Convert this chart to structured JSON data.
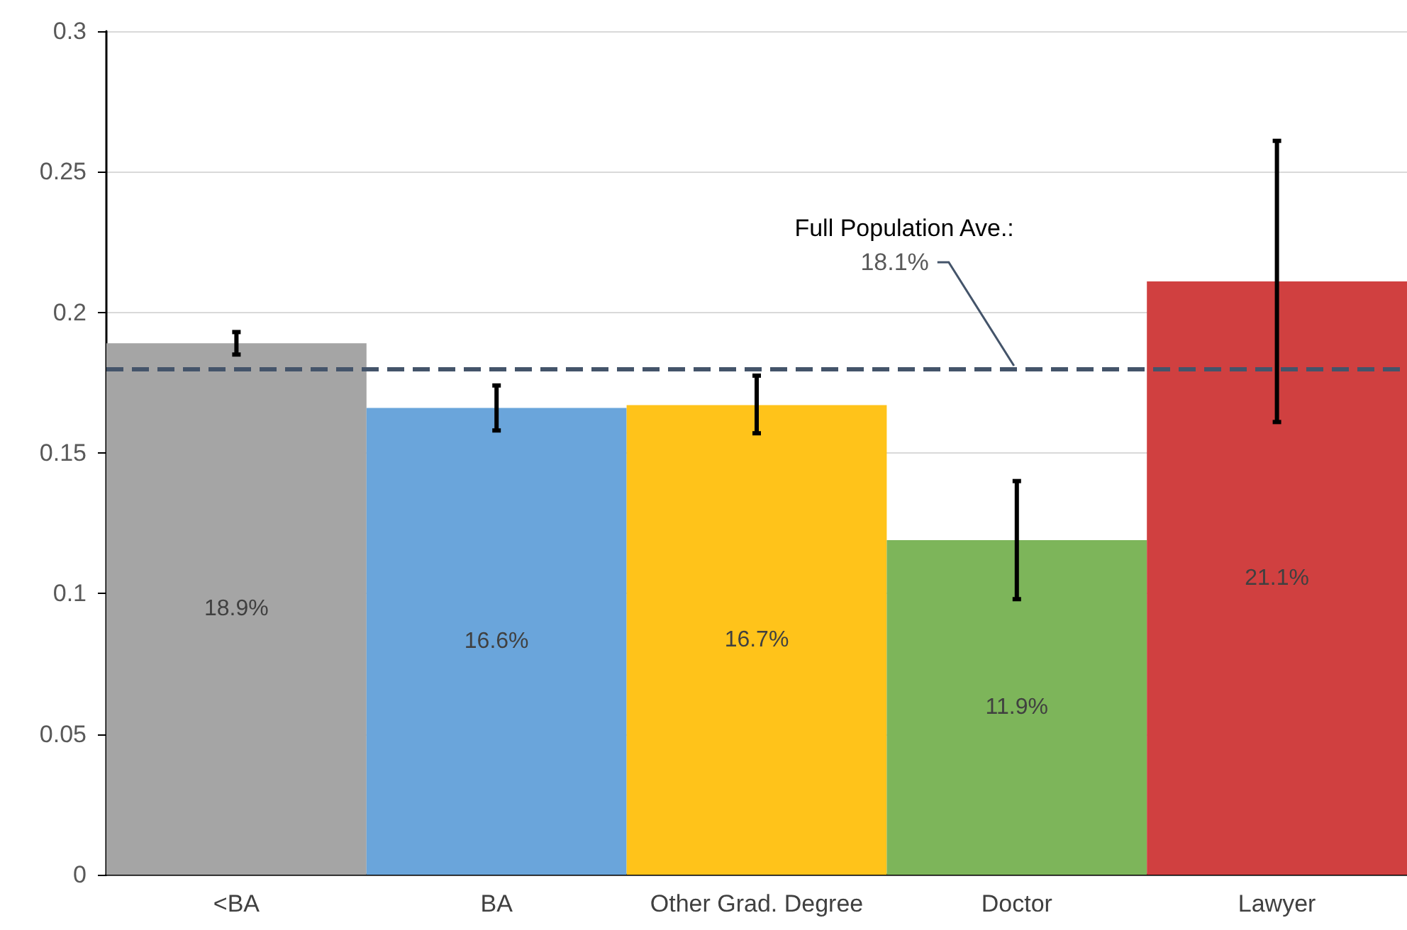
{
  "chart_data": {
    "type": "bar",
    "categories": [
      "<BA",
      "BA",
      "Other Grad. Degree",
      "Doctor",
      "Lawyer"
    ],
    "values": [
      0.189,
      0.166,
      0.167,
      0.119,
      0.211
    ],
    "colors": [
      "#a5a5a5",
      "#6aa5db",
      "#ffc31a",
      "#7db55a",
      "#d04040"
    ],
    "value_labels": [
      "18.9%",
      "16.6%",
      "16.7%",
      "11.9%",
      "21.1%"
    ],
    "errors": [
      [
        0.185,
        0.193
      ],
      [
        0.158,
        0.174
      ],
      [
        0.157,
        0.1775
      ],
      [
        0.098,
        0.14
      ],
      [
        0.161,
        0.261
      ]
    ],
    "ylim": [
      0,
      0.3
    ],
    "yticks": [
      0,
      0.05,
      0.1,
      0.15,
      0.2,
      0.25,
      0.3
    ],
    "grid": "y",
    "ref_lines": [
      {
        "axis": "y",
        "value": 0.181,
        "label": "Full Population Ave.:",
        "color": "#44546a",
        "line_style": "dashed"
      }
    ],
    "annotations": [
      {
        "text": "18.1%",
        "x": "Doctor",
        "y": 0.181
      }
    ]
  }
}
